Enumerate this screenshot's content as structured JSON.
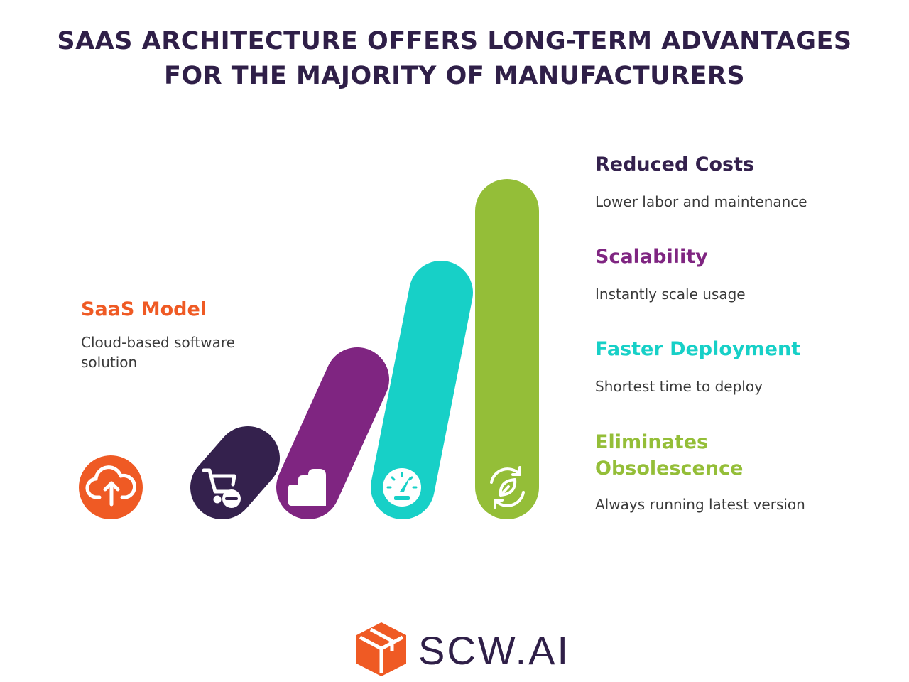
{
  "title": {
    "line1": "SAAS ARCHITECTURE OFFERS LONG-TERM ADVANTAGES",
    "line2": "FOR THE MAJORITY OF MANUFACTURERS"
  },
  "left_block": {
    "heading": "SaaS Model",
    "description": "Cloud-based software solution",
    "color": "#ef5a24",
    "icon": "cloud-upload-icon"
  },
  "items": [
    {
      "heading": "Reduced Costs",
      "description": "Lower labor and maintenance",
      "color": "#34214d",
      "icon": "cart-minus-icon"
    },
    {
      "heading": "Scalability",
      "description": "Instantly scale usage",
      "color": "#7f2581",
      "icon": "stacked-blocks-icon"
    },
    {
      "heading": "Faster Deployment",
      "description": "Shortest time to deploy",
      "color": "#17d0c7",
      "icon": "speedometer-icon"
    },
    {
      "heading": "Eliminates Obsolescence",
      "description": "Always running latest version",
      "color": "#94be38",
      "icon": "leaf-refresh-icon"
    }
  ],
  "brand": {
    "name": "SCW.AI",
    "text_color": "#2f1f48",
    "accent_color": "#ef5a24",
    "icon": "box-logo-icon"
  }
}
